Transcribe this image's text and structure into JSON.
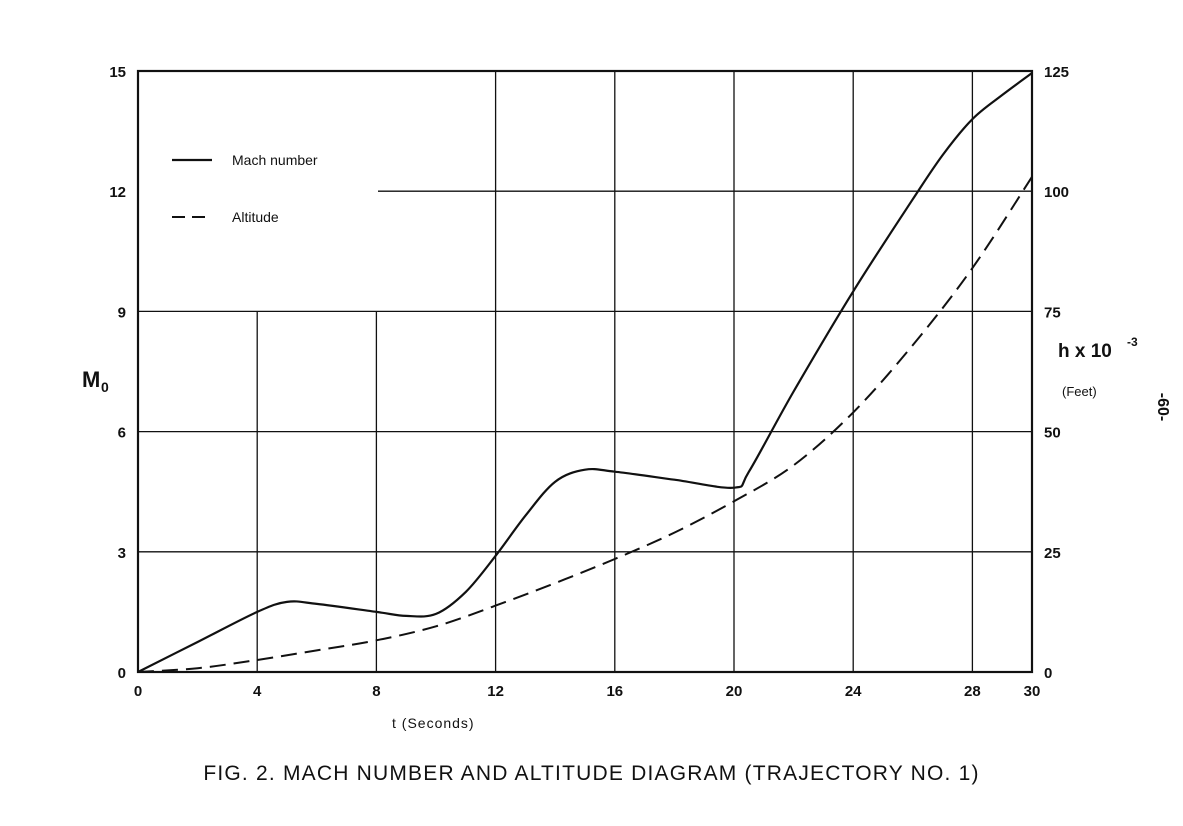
{
  "caption": "FIG. 2. MACH NUMBER AND ALTITUDE DIAGRAM (TRAJECTORY NO. 1)",
  "page_number": "-60-",
  "chart_data": {
    "type": "line",
    "title": "",
    "xlabel": "t (Seconds)",
    "ylabel": "M",
    "ylabel_sub": "0",
    "y2label": "h x 10",
    "y2label_exp": "-3",
    "y2label_unit": "(Feet)",
    "xlim": [
      0,
      30
    ],
    "ylim": [
      0,
      15
    ],
    "y2lim": [
      0,
      125
    ],
    "x_ticks": [
      0,
      4,
      8,
      12,
      16,
      20,
      24,
      28,
      30
    ],
    "y_ticks": [
      0,
      3,
      6,
      9,
      12,
      15
    ],
    "y2_ticks": [
      0,
      25,
      50,
      75,
      100,
      125
    ],
    "grid": true,
    "legend_position": "top-left",
    "series": [
      {
        "name": "Mach number",
        "style": "solid",
        "axis": "left",
        "x": [
          0,
          2,
          4,
          5,
          6,
          8,
          9,
          10,
          11,
          12,
          13,
          14,
          15,
          16,
          18,
          20,
          20.5,
          22,
          24,
          26,
          27,
          28,
          29,
          30
        ],
        "y": [
          0,
          0.75,
          1.5,
          1.75,
          1.7,
          1.5,
          1.4,
          1.45,
          2.0,
          2.9,
          3.9,
          4.75,
          5.05,
          5.0,
          4.8,
          4.6,
          5.0,
          7.0,
          9.5,
          11.8,
          12.9,
          13.8,
          14.4,
          14.95
        ]
      },
      {
        "name": "Altitude",
        "style": "dashed",
        "axis": "right",
        "x": [
          0,
          2,
          4,
          6,
          8,
          10,
          12,
          14,
          16,
          18,
          20,
          22,
          24,
          26,
          28,
          30
        ],
        "y": [
          0,
          0.8,
          2.5,
          4.5,
          6.6,
          9.5,
          13.8,
          18.5,
          23.5,
          29,
          35.5,
          43,
          54,
          68,
          84,
          103
        ]
      }
    ]
  }
}
